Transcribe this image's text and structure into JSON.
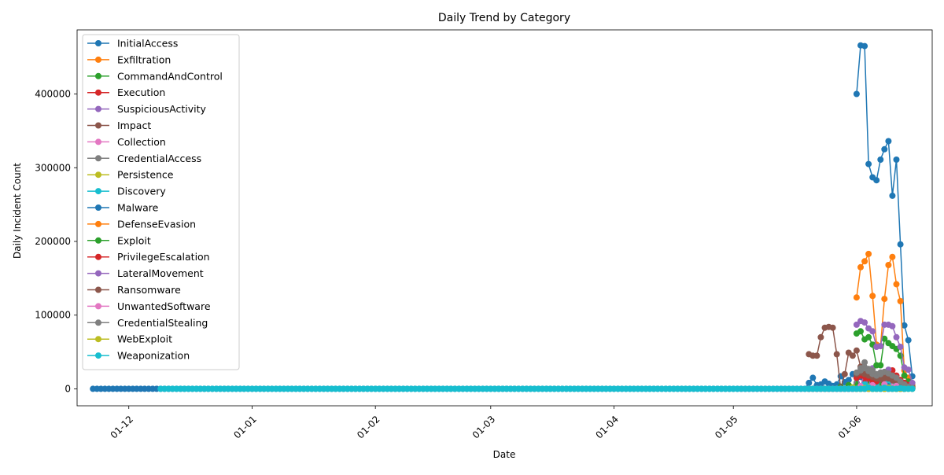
{
  "chart_data": {
    "type": "line",
    "title": "Daily Trend by Category",
    "xlabel": "Date",
    "ylabel": "Daily Incident Count",
    "x_type": "date",
    "xlim": [
      "2023-11-18",
      "2024-06-20"
    ],
    "ylim": [
      -23000,
      487000
    ],
    "x_tick_labels": [
      {
        "date": "2023-12-01",
        "label": "01-12"
      },
      {
        "date": "2024-01-01",
        "label": "01-01"
      },
      {
        "date": "2024-02-01",
        "label": "01-02"
      },
      {
        "date": "2024-03-01",
        "label": "01-03"
      },
      {
        "date": "2024-04-01",
        "label": "01-04"
      },
      {
        "date": "2024-05-01",
        "label": "01-05"
      },
      {
        "date": "2024-06-01",
        "label": "01-06"
      }
    ],
    "y_ticks": [
      0,
      100000,
      200000,
      300000,
      400000
    ],
    "grid": false,
    "legend_position": "upper-left",
    "series": [
      {
        "name": "InitialAccess",
        "color": "#1f77b4",
        "start": "2023-11-22",
        "end": "2024-06-13",
        "points": [
          [
            "2024-05-20",
            8000
          ],
          [
            "2024-05-21",
            15000
          ],
          [
            "2024-05-22",
            5000
          ],
          [
            "2024-05-23",
            6000
          ],
          [
            "2024-05-24",
            10000
          ],
          [
            "2024-05-25",
            7000
          ],
          [
            "2024-05-26",
            4000
          ],
          [
            "2024-05-27",
            6000
          ],
          [
            "2024-05-28",
            17000
          ],
          [
            "2024-05-29",
            9000
          ],
          [
            "2024-05-30",
            12000
          ],
          [
            "2024-05-31",
            20000
          ],
          [
            "2024-06-01",
            18000
          ],
          [
            "2024-06-02",
            16000
          ],
          [
            "2024-06-03",
            14000
          ],
          [
            "2024-06-04",
            12000
          ],
          [
            "2024-06-05",
            10000
          ],
          [
            "2024-06-06",
            9000
          ],
          [
            "2024-06-07",
            8000
          ],
          [
            "2024-06-08",
            6000
          ],
          [
            "2024-06-09",
            5000
          ],
          [
            "2024-06-10",
            4000
          ],
          [
            "2024-06-11",
            3000
          ],
          [
            "2024-06-12",
            2000
          ],
          [
            "2024-06-13",
            1000
          ]
        ]
      },
      {
        "name": "Exfiltration",
        "color": "#ff7f0e",
        "start": "2024-05-20",
        "end": "2024-06-13",
        "points": [
          [
            "2024-05-30",
            5000
          ],
          [
            "2024-06-01",
            8000
          ],
          [
            "2024-06-04",
            10000
          ],
          [
            "2024-06-07",
            12000
          ],
          [
            "2024-06-10",
            9000
          ],
          [
            "2024-06-12",
            5000
          ]
        ]
      },
      {
        "name": "CommandAndControl",
        "color": "#2ca02c",
        "start": "2024-05-20",
        "end": "2024-06-13",
        "points": [
          [
            "2024-05-28",
            3000
          ],
          [
            "2024-05-30",
            5000
          ],
          [
            "2024-06-01",
            8000
          ],
          [
            "2024-06-04",
            9000
          ],
          [
            "2024-06-07",
            7000
          ],
          [
            "2024-06-10",
            5000
          ],
          [
            "2024-06-12",
            3000
          ]
        ]
      },
      {
        "name": "Execution",
        "color": "#d62728",
        "start": "2024-05-20",
        "end": "2024-06-13",
        "points": [
          [
            "2024-06-03",
            12000
          ],
          [
            "2024-06-05",
            16000
          ],
          [
            "2024-06-07",
            14000
          ],
          [
            "2024-06-09",
            22000
          ],
          [
            "2024-06-10",
            25000
          ],
          [
            "2024-06-11",
            18000
          ],
          [
            "2024-06-12",
            12000
          ],
          [
            "2024-06-13",
            5000
          ]
        ]
      },
      {
        "name": "SuspiciousActivity",
        "color": "#9467bd",
        "start": "2024-05-20",
        "end": "2024-06-13",
        "points": [
          [
            "2024-06-01",
            20000
          ],
          [
            "2024-06-03",
            25000
          ],
          [
            "2024-06-05",
            28000
          ],
          [
            "2024-06-07",
            22000
          ],
          [
            "2024-06-09",
            26000
          ],
          [
            "2024-06-11",
            15000
          ],
          [
            "2024-06-13",
            8000
          ]
        ]
      },
      {
        "name": "Impact",
        "color": "#8c564b",
        "start": "2024-05-20",
        "end": "2024-06-13",
        "points": [
          [
            "2024-05-20",
            47000
          ],
          [
            "2024-05-21",
            45000
          ],
          [
            "2024-05-22",
            45000
          ],
          [
            "2024-05-23",
            70000
          ],
          [
            "2024-05-24",
            83000
          ],
          [
            "2024-05-25",
            84000
          ],
          [
            "2024-05-26",
            83000
          ],
          [
            "2024-05-27",
            47000
          ],
          [
            "2024-05-28",
            0
          ],
          [
            "2024-05-29",
            20000
          ],
          [
            "2024-05-30",
            49000
          ],
          [
            "2024-05-31",
            45000
          ],
          [
            "2024-06-01",
            52000
          ],
          [
            "2024-06-02",
            30000
          ],
          [
            "2024-06-03",
            25000
          ],
          [
            "2024-06-04",
            22000
          ],
          [
            "2024-06-05",
            18000
          ],
          [
            "2024-06-06",
            15000
          ],
          [
            "2024-06-07",
            14000
          ],
          [
            "2024-06-08",
            12000
          ],
          [
            "2024-06-09",
            13000
          ],
          [
            "2024-06-10",
            12000
          ],
          [
            "2024-06-11",
            10000
          ],
          [
            "2024-06-12",
            6000
          ],
          [
            "2024-06-13",
            2000
          ]
        ]
      },
      {
        "name": "Collection",
        "color": "#e377c2",
        "start": "2024-05-20",
        "end": "2024-06-13",
        "points": [
          [
            "2024-06-02",
            3000
          ],
          [
            "2024-06-06",
            4000
          ],
          [
            "2024-06-10",
            3000
          ]
        ]
      },
      {
        "name": "CredentialAccess",
        "color": "#7f7f7f",
        "start": "2024-05-20",
        "end": "2024-06-13",
        "points": [
          [
            "2024-06-01",
            15000
          ],
          [
            "2024-06-02",
            28000
          ],
          [
            "2024-06-03",
            36000
          ],
          [
            "2024-06-04",
            27000
          ],
          [
            "2024-06-05",
            25000
          ],
          [
            "2024-06-06",
            20000
          ],
          [
            "2024-06-07",
            22000
          ],
          [
            "2024-06-08",
            18000
          ],
          [
            "2024-06-09",
            15000
          ],
          [
            "2024-06-10",
            12000
          ],
          [
            "2024-06-11",
            8000
          ],
          [
            "2024-06-12",
            5000
          ],
          [
            "2024-06-13",
            2000
          ]
        ]
      },
      {
        "name": "Persistence",
        "color": "#bcbd22",
        "start": "2024-05-20",
        "end": "2024-06-13",
        "points": [
          [
            "2024-05-31",
            2000
          ],
          [
            "2024-06-04",
            3000
          ],
          [
            "2024-06-08",
            2000
          ]
        ]
      },
      {
        "name": "Discovery",
        "color": "#17becf",
        "start": "2024-05-20",
        "end": "2024-06-13",
        "points": [
          [
            "2024-06-03",
            6000
          ],
          [
            "2024-06-06",
            8000
          ],
          [
            "2024-06-09",
            12000
          ],
          [
            "2024-06-10",
            0
          ],
          [
            "2024-06-11",
            5000
          ]
        ]
      },
      {
        "name": "Malware",
        "color": "#1f77b4",
        "start": "2024-06-01",
        "end": "2024-06-13",
        "points": [
          [
            "2024-06-01",
            400000
          ],
          [
            "2024-06-02",
            466000
          ],
          [
            "2024-06-03",
            465000
          ],
          [
            "2024-06-04",
            305000
          ],
          [
            "2024-06-05",
            287000
          ],
          [
            "2024-06-06",
            283000
          ],
          [
            "2024-06-07",
            311000
          ],
          [
            "2024-06-08",
            325000
          ],
          [
            "2024-06-09",
            336000
          ],
          [
            "2024-06-10",
            262000
          ],
          [
            "2024-06-11",
            311000
          ],
          [
            "2024-06-12",
            196000
          ],
          [
            "2024-06-13",
            86000
          ],
          [
            "2024-06-14",
            66000
          ],
          [
            "2024-06-15",
            17000
          ]
        ]
      },
      {
        "name": "DefenseEvasion",
        "color": "#ff7f0e",
        "start": "2024-06-01",
        "end": "2024-06-13",
        "points": [
          [
            "2024-06-01",
            124000
          ],
          [
            "2024-06-02",
            165000
          ],
          [
            "2024-06-03",
            173000
          ],
          [
            "2024-06-04",
            183000
          ],
          [
            "2024-06-05",
            126000
          ],
          [
            "2024-06-06",
            60000
          ],
          [
            "2024-06-07",
            58000
          ],
          [
            "2024-06-08",
            122000
          ],
          [
            "2024-06-09",
            168000
          ],
          [
            "2024-06-10",
            179000
          ],
          [
            "2024-06-11",
            142000
          ],
          [
            "2024-06-12",
            119000
          ],
          [
            "2024-06-13",
            25000
          ],
          [
            "2024-06-14",
            15000
          ],
          [
            "2024-06-15",
            5000
          ]
        ]
      },
      {
        "name": "Exploit",
        "color": "#2ca02c",
        "start": "2024-06-01",
        "end": "2024-06-13",
        "points": [
          [
            "2024-06-01",
            75000
          ],
          [
            "2024-06-02",
            78000
          ],
          [
            "2024-06-03",
            67000
          ],
          [
            "2024-06-04",
            70000
          ],
          [
            "2024-06-05",
            60000
          ],
          [
            "2024-06-06",
            32000
          ],
          [
            "2024-06-07",
            32000
          ],
          [
            "2024-06-08",
            68000
          ],
          [
            "2024-06-09",
            62000
          ],
          [
            "2024-06-10",
            58000
          ],
          [
            "2024-06-11",
            54000
          ],
          [
            "2024-06-12",
            45000
          ],
          [
            "2024-06-13",
            18000
          ],
          [
            "2024-06-14",
            10000
          ],
          [
            "2024-06-15",
            3000
          ]
        ]
      },
      {
        "name": "PrivilegeEscalation",
        "color": "#d62728",
        "start": "2024-06-01",
        "end": "2024-06-13",
        "points": [
          [
            "2024-06-01",
            15000
          ],
          [
            "2024-06-02",
            18000
          ],
          [
            "2024-06-03",
            17000
          ],
          [
            "2024-06-04",
            14000
          ],
          [
            "2024-06-05",
            12000
          ],
          [
            "2024-06-06",
            10000
          ],
          [
            "2024-06-07",
            16000
          ],
          [
            "2024-06-08",
            18000
          ],
          [
            "2024-06-09",
            20000
          ],
          [
            "2024-06-10",
            17000
          ],
          [
            "2024-06-11",
            15000
          ],
          [
            "2024-06-12",
            12000
          ],
          [
            "2024-06-13",
            8000
          ],
          [
            "2024-06-14",
            5000
          ],
          [
            "2024-06-15",
            2000
          ]
        ]
      },
      {
        "name": "LateralMovement",
        "color": "#9467bd",
        "start": "2024-06-01",
        "end": "2024-06-13",
        "points": [
          [
            "2024-06-01",
            87000
          ],
          [
            "2024-06-02",
            92000
          ],
          [
            "2024-06-03",
            90000
          ],
          [
            "2024-06-04",
            82000
          ],
          [
            "2024-06-05",
            78000
          ],
          [
            "2024-06-06",
            57000
          ],
          [
            "2024-06-07",
            58000
          ],
          [
            "2024-06-08",
            87000
          ],
          [
            "2024-06-09",
            87000
          ],
          [
            "2024-06-10",
            85000
          ],
          [
            "2024-06-11",
            70000
          ],
          [
            "2024-06-12",
            57000
          ],
          [
            "2024-06-13",
            29000
          ],
          [
            "2024-06-14",
            26000
          ],
          [
            "2024-06-15",
            8000
          ]
        ]
      },
      {
        "name": "Ransomware",
        "color": "#8c564b",
        "start": "2024-06-01",
        "end": "2024-06-13",
        "points": [
          [
            "2024-06-01",
            20000
          ],
          [
            "2024-06-02",
            22000
          ],
          [
            "2024-06-03",
            20000
          ],
          [
            "2024-06-04",
            18000
          ],
          [
            "2024-06-05",
            16000
          ],
          [
            "2024-06-06",
            14000
          ],
          [
            "2024-06-07",
            13000
          ],
          [
            "2024-06-08",
            15000
          ],
          [
            "2024-06-09",
            14000
          ],
          [
            "2024-06-10",
            12000
          ],
          [
            "2024-06-11",
            10000
          ],
          [
            "2024-06-12",
            8000
          ],
          [
            "2024-06-13",
            5000
          ],
          [
            "2024-06-14",
            3000
          ],
          [
            "2024-06-15",
            1000
          ]
        ]
      },
      {
        "name": "UnwantedSoftware",
        "color": "#e377c2",
        "start": "2024-05-03",
        "end": "2024-06-15",
        "points": [
          [
            "2024-06-02",
            4000
          ],
          [
            "2024-06-05",
            5000
          ],
          [
            "2024-06-08",
            6000
          ],
          [
            "2024-06-11",
            4000
          ],
          [
            "2024-06-14",
            2000
          ]
        ]
      },
      {
        "name": "CredentialStealing",
        "color": "#7f7f7f",
        "start": "2024-06-01",
        "end": "2024-06-15",
        "points": [
          [
            "2024-06-01",
            22000
          ],
          [
            "2024-06-02",
            25000
          ],
          [
            "2024-06-03",
            28000
          ],
          [
            "2024-06-04",
            24000
          ],
          [
            "2024-06-05",
            20000
          ],
          [
            "2024-06-06",
            18000
          ],
          [
            "2024-06-07",
            20000
          ],
          [
            "2024-06-08",
            23000
          ],
          [
            "2024-06-09",
            21000
          ],
          [
            "2024-06-10",
            18000
          ],
          [
            "2024-06-11",
            15000
          ],
          [
            "2024-06-12",
            10000
          ],
          [
            "2024-06-13",
            6000
          ],
          [
            "2024-06-14",
            3000
          ],
          [
            "2024-06-15",
            1000
          ]
        ]
      },
      {
        "name": "WebExploit",
        "color": "#bcbd22",
        "start": "2024-06-01",
        "end": "2024-06-15",
        "points": [
          [
            "2024-06-03",
            1000
          ],
          [
            "2024-06-09",
            1500
          ]
        ]
      },
      {
        "name": "Weaponization",
        "color": "#17becf",
        "start": "2023-12-09",
        "end": "2024-06-15",
        "points": [
          [
            "2024-06-04",
            2000
          ],
          [
            "2024-06-08",
            1500
          ],
          [
            "2024-06-12",
            1000
          ]
        ]
      }
    ]
  }
}
